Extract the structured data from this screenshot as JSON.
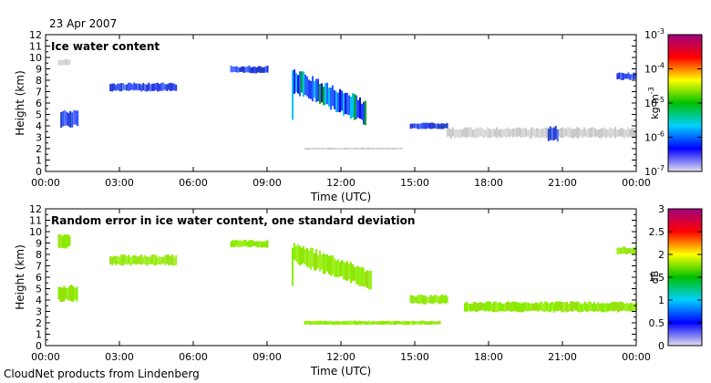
{
  "date": "23 Apr 2007",
  "footer": "CloudNet products from Lindenberg",
  "panels": [
    {
      "title": "Ice water content",
      "ylabel": "Height (km)",
      "xlabel": "Time (UTC)",
      "colorbar": {
        "unit": "kg m",
        "unit_exp": "-3",
        "scale": "log",
        "ticks": [
          {
            "base": "10",
            "exp": "-3"
          },
          {
            "base": "10",
            "exp": "-4"
          },
          {
            "base": "10",
            "exp": "-5"
          },
          {
            "base": "10",
            "exp": "-6"
          },
          {
            "base": "10",
            "exp": "-7"
          }
        ],
        "colors": [
          "#e0e0ee",
          "#0000ff",
          "#00d0ff",
          "#00c000",
          "#ffff00",
          "#ff0000",
          "#a00080"
        ]
      }
    },
    {
      "title": "Random error in ice water content, one standard deviation",
      "ylabel": "Height (km)",
      "xlabel": "Time (UTC)",
      "colorbar": {
        "unit": "dB",
        "scale": "linear",
        "ticks": [
          "3",
          "2.5",
          "2",
          "1.5",
          "1",
          "0.5",
          "0"
        ],
        "colors": [
          "#e0e0ee",
          "#0000ff",
          "#00d0ff",
          "#00c000",
          "#ffff00",
          "#ff0000",
          "#a00080"
        ]
      }
    }
  ],
  "chart_data": [
    {
      "type": "heatmap",
      "title": "Ice water content",
      "xlabel": "Time (UTC)",
      "ylabel": "Height (km)",
      "xlim": [
        0,
        24
      ],
      "ylim": [
        0,
        12
      ],
      "x_ticks": [
        "00:00",
        "03:00",
        "06:00",
        "09:00",
        "12:00",
        "15:00",
        "18:00",
        "21:00",
        "00:00"
      ],
      "y_ticks": [
        "0",
        "1",
        "2",
        "3",
        "4",
        "5",
        "6",
        "7",
        "8",
        "9",
        "10",
        "11",
        "12"
      ],
      "colorbar": {
        "label": "kg m-3",
        "scale": "log",
        "range": [
          1e-07,
          0.001
        ]
      },
      "features": [
        {
          "time_start": 0.6,
          "time_end": 1.3,
          "height_bottom": 3.8,
          "height_top": 5.4,
          "level": "1e-6 to 1e-5"
        },
        {
          "time_start": 0.5,
          "time_end": 1.0,
          "height_bottom": 9.3,
          "height_top": 9.9,
          "level": "< 1e-6"
        },
        {
          "time_start": 2.6,
          "time_end": 5.3,
          "height_bottom": 7.0,
          "height_top": 7.8,
          "level": "1e-6 to 1e-5"
        },
        {
          "time_start": 7.5,
          "time_end": 9.0,
          "height_bottom": 8.6,
          "height_top": 9.3,
          "level": "1e-6 to 1e-5"
        },
        {
          "time_start": 10.0,
          "time_end": 13.0,
          "height_bottom": 4.0,
          "height_top": 9.2,
          "level": "1e-6 to 1e-4"
        },
        {
          "time_start": 10.5,
          "time_end": 14.5,
          "height_bottom": 1.9,
          "height_top": 2.1,
          "level": "< 1e-6"
        },
        {
          "time_start": 14.8,
          "time_end": 16.3,
          "height_bottom": 3.7,
          "height_top": 4.3,
          "level": "1e-6 to 1e-5"
        },
        {
          "time_start": 16.3,
          "time_end": 24.0,
          "height_bottom": 2.9,
          "height_top": 3.9,
          "level": "< 1e-6"
        },
        {
          "time_start": 20.4,
          "time_end": 20.8,
          "height_bottom": 2.6,
          "height_top": 4.0,
          "level": "1e-6 to 1e-5"
        },
        {
          "time_start": 23.2,
          "time_end": 24.0,
          "height_bottom": 8.0,
          "height_top": 8.7,
          "level": "1e-6 to 1e-5"
        }
      ]
    },
    {
      "type": "heatmap",
      "title": "Random error in ice water content, one standard deviation",
      "xlabel": "Time (UTC)",
      "ylabel": "Height (km)",
      "xlim": [
        0,
        24
      ],
      "ylim": [
        0,
        12
      ],
      "x_ticks": [
        "00:00",
        "03:00",
        "06:00",
        "09:00",
        "12:00",
        "15:00",
        "18:00",
        "21:00",
        "00:00"
      ],
      "y_ticks": [
        "0",
        "1",
        "2",
        "3",
        "4",
        "5",
        "6",
        "7",
        "8",
        "9",
        "10",
        "11",
        "12"
      ],
      "colorbar": {
        "label": "dB",
        "scale": "linear",
        "range": [
          0,
          3
        ]
      },
      "features": [
        {
          "time_start": 0.5,
          "time_end": 1.3,
          "height_bottom": 3.8,
          "height_top": 5.4,
          "error_db": 1.5
        },
        {
          "time_start": 0.5,
          "time_end": 1.0,
          "height_bottom": 8.5,
          "height_top": 9.8,
          "error_db": 1.5
        },
        {
          "time_start": 2.6,
          "time_end": 5.3,
          "height_bottom": 7.0,
          "height_top": 8.0,
          "error_db": 1.5
        },
        {
          "time_start": 7.5,
          "time_end": 9.0,
          "height_bottom": 8.6,
          "height_top": 9.3,
          "error_db": 1.5
        },
        {
          "time_start": 10.0,
          "time_end": 13.2,
          "height_bottom": 4.8,
          "height_top": 9.2,
          "error_db": 1.5
        },
        {
          "time_start": 10.5,
          "time_end": 16.0,
          "height_bottom": 1.8,
          "height_top": 2.2,
          "error_db": 1.5
        },
        {
          "time_start": 14.8,
          "time_end": 16.3,
          "height_bottom": 3.6,
          "height_top": 4.5,
          "error_db": 1.5
        },
        {
          "time_start": 17.0,
          "time_end": 24.0,
          "height_bottom": 2.9,
          "height_top": 3.9,
          "error_db": 1.5
        },
        {
          "time_start": 23.2,
          "time_end": 24.0,
          "height_bottom": 8.0,
          "height_top": 8.7,
          "error_db": 1.5
        }
      ]
    }
  ]
}
